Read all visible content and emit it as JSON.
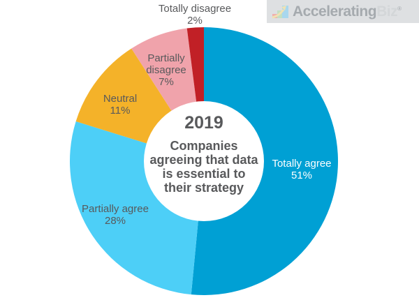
{
  "logo": {
    "brand_primary": "Accelerating",
    "brand_secondary": "Biz",
    "registered": "®",
    "icon": "growth-chart-icon"
  },
  "chart_data": {
    "type": "pie",
    "subtype": "donut",
    "title": "2019",
    "subtitle": "Companies agreeing that data is essential to their strategy",
    "subtitle_lines": [
      "Companies",
      "agreeing that data",
      "is essential to",
      "their strategy"
    ],
    "start_angle_deg": 0,
    "direction": "clockwise",
    "legend_position": "on-slices",
    "text_color": "#58595B",
    "segments": [
      {
        "label": "Totally agree",
        "value": 51,
        "pct_label": "51%",
        "color": "#00A0D4",
        "label_color": "#FFFFFF"
      },
      {
        "label": "Partially agree",
        "value": 28,
        "pct_label": "28%",
        "color": "#4DCFF7",
        "label_color": "#58595B"
      },
      {
        "label": "Neutral",
        "value": 11,
        "pct_label": "11%",
        "color": "#F4B229",
        "label_color": "#58595B"
      },
      {
        "label": "Partially disagree",
        "value": 7,
        "pct_label": "7%",
        "color": "#F0A3AB",
        "label_color": "#58595B"
      },
      {
        "label": "Totally disagree",
        "value": 2,
        "pct_label": "2%",
        "color": "#C12026",
        "label_color": "#58595B"
      }
    ]
  }
}
